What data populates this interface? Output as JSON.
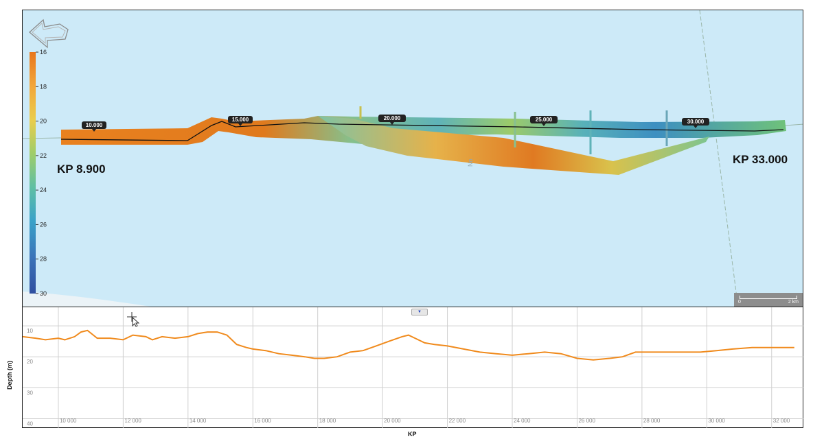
{
  "map": {
    "kp_start_label": "KP 8.900",
    "kp_end_label": "KP 33.000",
    "kp_markers": [
      "10.000",
      "15.000",
      "20.000",
      "25.000",
      "30.000"
    ],
    "depth_scale": {
      "ticks": [
        "16",
        "18",
        "20",
        "22",
        "24",
        "26",
        "28",
        "30"
      ],
      "colors": [
        "#e8761c",
        "#f2a63a",
        "#eacd4c",
        "#9fcd6a",
        "#5fbfa4",
        "#3aa2c9",
        "#3b73b8",
        "#2f4fa0"
      ]
    },
    "map_text": "No",
    "scale_bar": {
      "left": "0",
      "right": "2 km"
    }
  },
  "profile": {
    "y_axis_label": "Depth (m)",
    "x_axis_label": "KP",
    "line_color": "#f08a1c"
  },
  "chart_data": {
    "type": "line",
    "title": "",
    "xlabel": "KP",
    "ylabel": "Depth (m)",
    "xlim": [
      8900,
      33000
    ],
    "ylim": [
      43,
      4
    ],
    "x_ticks": [
      "10 000",
      "12 000",
      "14 000",
      "16 000",
      "18 000",
      "20 000",
      "22 000",
      "24 000",
      "26 000",
      "28 000",
      "30 000",
      "32 000"
    ],
    "y_ticks": [
      "10",
      "20",
      "30",
      "40"
    ],
    "grid": true,
    "series": [
      {
        "x": [
          8900,
          9300,
          9600,
          10000,
          10200,
          10500,
          10700,
          10900,
          11200,
          11600,
          12000,
          12300,
          12700,
          12900,
          13200,
          13600,
          14000,
          14300,
          14600,
          14900,
          15200,
          15500,
          15800,
          16000,
          16400,
          16800,
          17200,
          17600,
          17900,
          18200,
          18600,
          19000,
          19400,
          19800,
          20200,
          20600,
          20800,
          21000,
          21300,
          21600,
          22000,
          22500,
          23000,
          23500,
          24000,
          24500,
          25000,
          25500,
          26000,
          26500,
          27000,
          27400,
          27800,
          28200,
          28700,
          29200,
          29800,
          30300,
          30800,
          31400,
          32000,
          32700
        ],
        "y": [
          13.5,
          14,
          14.5,
          14,
          14.5,
          13.5,
          12,
          11.5,
          14,
          14,
          14.5,
          13,
          13.5,
          14.5,
          13.5,
          14,
          13.5,
          12.5,
          12,
          12,
          13,
          16,
          17,
          17.5,
          18,
          19,
          19.5,
          20,
          20.5,
          20.5,
          20,
          18.5,
          18,
          16.5,
          15,
          13.5,
          13,
          14,
          15.5,
          16,
          16.5,
          17.5,
          18.5,
          19,
          19.5,
          19,
          18.5,
          19,
          20.5,
          21,
          20.5,
          20,
          18.5,
          18.5,
          18.5,
          18.5,
          18.5,
          18,
          17.5,
          17,
          17,
          17
        ]
      }
    ]
  }
}
